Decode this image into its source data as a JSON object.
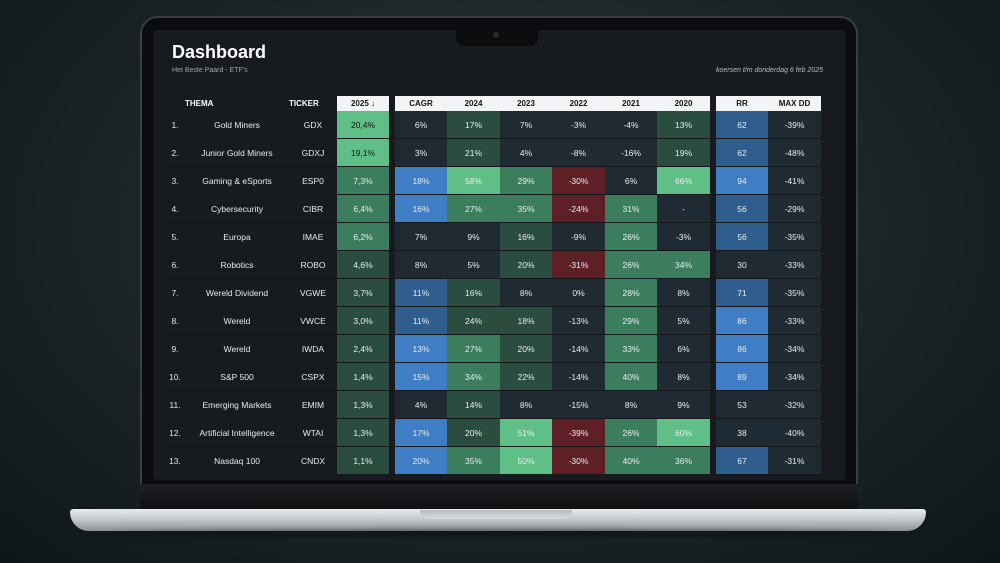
{
  "dashboard": {
    "title": "Dashboard",
    "subtitle": "Het Beste Paard - ETF's",
    "date_note": "koersen t/m donderdag 6 feb 2025"
  },
  "columns": {
    "theme": "THEMA",
    "ticker": "TICKER",
    "y2025": "2025 ↓",
    "cagr": "CAGR",
    "y2024": "2024",
    "y2023": "2023",
    "y2022": "2022",
    "y2021": "2021",
    "y2020": "2020",
    "rr": "RR",
    "maxdd": "MAX DD"
  },
  "rows": [
    {
      "num": "1.",
      "theme": "Gold Miners",
      "ticker": "GDX",
      "y2025": "20,4%",
      "cagr": "6%",
      "y2024": "17%",
      "y2023": "7%",
      "y2022": "-3%",
      "y2021": "-4%",
      "y2020": "13%",
      "rr": "62",
      "maxdd": "-39%"
    },
    {
      "num": "2.",
      "theme": "Junior Gold Miners",
      "ticker": "GDXJ",
      "y2025": "19,1%",
      "cagr": "3%",
      "y2024": "21%",
      "y2023": "4%",
      "y2022": "-8%",
      "y2021": "-16%",
      "y2020": "19%",
      "rr": "62",
      "maxdd": "-48%"
    },
    {
      "num": "3.",
      "theme": "Gaming & eSports",
      "ticker": "ESP0",
      "y2025": "7,3%",
      "cagr": "18%",
      "y2024": "58%",
      "y2023": "29%",
      "y2022": "-30%",
      "y2021": "6%",
      "y2020": "66%",
      "rr": "94",
      "maxdd": "-41%"
    },
    {
      "num": "4.",
      "theme": "Cybersecurity",
      "ticker": "CIBR",
      "y2025": "6,4%",
      "cagr": "16%",
      "y2024": "27%",
      "y2023": "35%",
      "y2022": "-24%",
      "y2021": "31%",
      "y2020": "-",
      "rr": "56",
      "maxdd": "-29%"
    },
    {
      "num": "5.",
      "theme": "Europa",
      "ticker": "IMAE",
      "y2025": "6,2%",
      "cagr": "7%",
      "y2024": "9%",
      "y2023": "16%",
      "y2022": "-9%",
      "y2021": "26%",
      "y2020": "-3%",
      "rr": "56",
      "maxdd": "-35%"
    },
    {
      "num": "6.",
      "theme": "Robotics",
      "ticker": "ROBO",
      "y2025": "4,6%",
      "cagr": "8%",
      "y2024": "5%",
      "y2023": "20%",
      "y2022": "-31%",
      "y2021": "26%",
      "y2020": "34%",
      "rr": "30",
      "maxdd": "-33%"
    },
    {
      "num": "7.",
      "theme": "Wereld Dividend",
      "ticker": "VGWE",
      "y2025": "3,7%",
      "cagr": "11%",
      "y2024": "16%",
      "y2023": "8%",
      "y2022": "0%",
      "y2021": "28%",
      "y2020": "8%",
      "rr": "71",
      "maxdd": "-35%"
    },
    {
      "num": "8.",
      "theme": "Wereld",
      "ticker": "VWCE",
      "y2025": "3,0%",
      "cagr": "11%",
      "y2024": "24%",
      "y2023": "18%",
      "y2022": "-13%",
      "y2021": "29%",
      "y2020": "5%",
      "rr": "86",
      "maxdd": "-33%"
    },
    {
      "num": "9.",
      "theme": "Wereld",
      "ticker": "IWDA",
      "y2025": "2,4%",
      "cagr": "13%",
      "y2024": "27%",
      "y2023": "20%",
      "y2022": "-14%",
      "y2021": "33%",
      "y2020": "6%",
      "rr": "86",
      "maxdd": "-34%"
    },
    {
      "num": "10.",
      "theme": "S&P 500",
      "ticker": "CSPX",
      "y2025": "1,4%",
      "cagr": "15%",
      "y2024": "34%",
      "y2023": "22%",
      "y2022": "-14%",
      "y2021": "40%",
      "y2020": "8%",
      "rr": "89",
      "maxdd": "-34%"
    },
    {
      "num": "11.",
      "theme": "Emerging Markets",
      "ticker": "EMIM",
      "y2025": "1,3%",
      "cagr": "4%",
      "y2024": "14%",
      "y2023": "8%",
      "y2022": "-15%",
      "y2021": "8%",
      "y2020": "9%",
      "rr": "53",
      "maxdd": "-32%"
    },
    {
      "num": "12.",
      "theme": "Artificial Intelligence",
      "ticker": "WTAI",
      "y2025": "1,3%",
      "cagr": "17%",
      "y2024": "20%",
      "y2023": "51%",
      "y2022": "-39%",
      "y2021": "26%",
      "y2020": "60%",
      "rr": "38",
      "maxdd": "-40%"
    },
    {
      "num": "13.",
      "theme": "Nasdaq 100",
      "ticker": "CNDX",
      "y2025": "1,1%",
      "cagr": "20%",
      "y2024": "35%",
      "y2023": "50%",
      "y2022": "-30%",
      "y2021": "40%",
      "y2020": "36%",
      "rr": "67",
      "maxdd": "-31%"
    }
  ],
  "colors": {
    "green_strong": "#5fbf86",
    "green_mid": "#3b7d5c",
    "green_dark": "#2a4d3f",
    "red": "#5e1f27",
    "blue_strong": "#3f7dc4",
    "blue_mid": "#2f5d8e",
    "neutral": "#1f2a33"
  }
}
